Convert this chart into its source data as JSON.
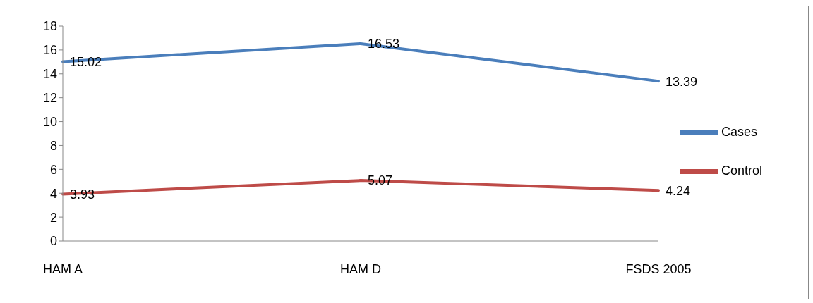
{
  "chart_data": {
    "type": "line",
    "categories": [
      "HAM A",
      "HAM D",
      "FSDS 2005"
    ],
    "series": [
      {
        "name": "Cases",
        "color": "#4a7ebb",
        "values": [
          15.02,
          16.53,
          13.39
        ]
      },
      {
        "name": "Control",
        "color": "#be4b48",
        "values": [
          3.93,
          5.07,
          4.24
        ]
      }
    ],
    "ylim": [
      0,
      18
    ],
    "yticks": [
      0,
      2,
      4,
      6,
      8,
      10,
      12,
      14,
      16,
      18
    ],
    "grid": false,
    "legend": "right",
    "marker": "none",
    "line_style": "solid",
    "data_labels": true
  }
}
